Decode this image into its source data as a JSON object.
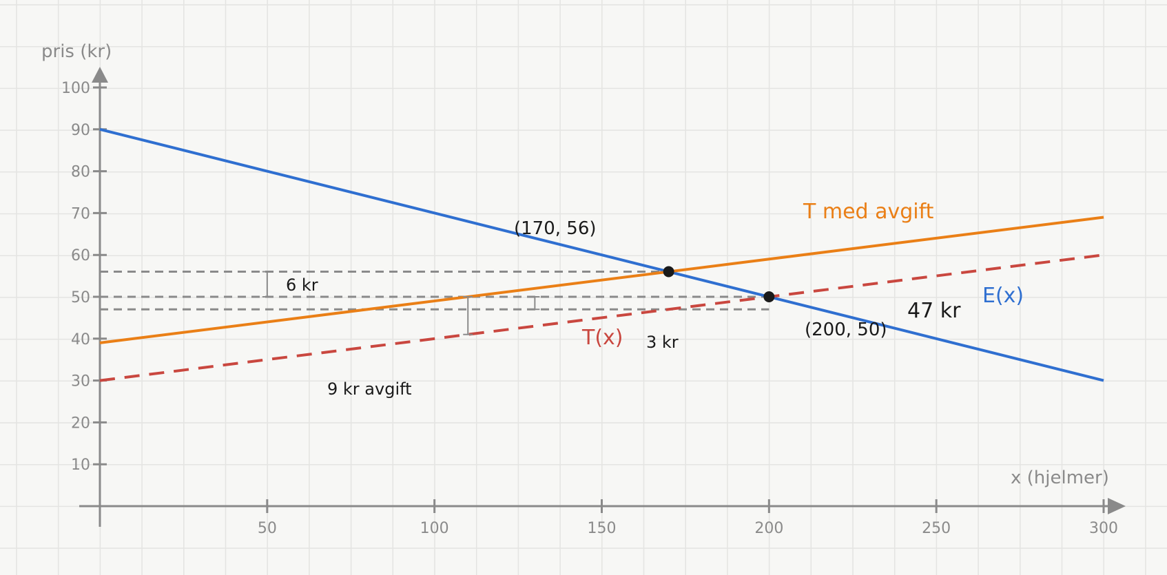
{
  "chart_data": {
    "type": "line",
    "xlabel": "x (hjelmer)",
    "ylabel": "pris (kr)",
    "xlim": [
      0,
      300
    ],
    "ylim": [
      0,
      100
    ],
    "x_ticks": [
      50,
      100,
      150,
      200,
      250,
      300
    ],
    "y_ticks": [
      10,
      20,
      30,
      40,
      50,
      60,
      70,
      80,
      90,
      100
    ],
    "grid": true,
    "series": [
      {
        "name": "E(x)",
        "color": "#2f6fd0",
        "style": "solid",
        "x": [
          0,
          300
        ],
        "y": [
          90,
          30
        ]
      },
      {
        "name": "T(x)",
        "color": "#c9473f",
        "style": "dashed",
        "x": [
          0,
          300
        ],
        "y": [
          30,
          60
        ]
      },
      {
        "name": "T med avgift",
        "color": "#ea7f16",
        "style": "solid",
        "x": [
          0,
          300
        ],
        "y": [
          39,
          69
        ]
      }
    ],
    "points": [
      {
        "label": "(170, 56)",
        "x": 170,
        "y": 56
      },
      {
        "label": "(200, 50)",
        "x": 200,
        "y": 50
      }
    ],
    "guides": [
      {
        "y": 56,
        "x_to": 170
      },
      {
        "y": 50,
        "x_to": 200
      },
      {
        "y": 47,
        "x_to": 200
      }
    ],
    "brackets": [
      {
        "x": 50,
        "y_from": 56,
        "y_to": 50,
        "label": "6 kr"
      },
      {
        "x": 110,
        "y_from": 50,
        "y_to": 41,
        "label": "9 kr avgift"
      },
      {
        "x": 130,
        "y_from": 50,
        "y_to": 47,
        "label": "3 kr"
      }
    ],
    "annotations": [
      {
        "text": "47 kr"
      }
    ]
  }
}
